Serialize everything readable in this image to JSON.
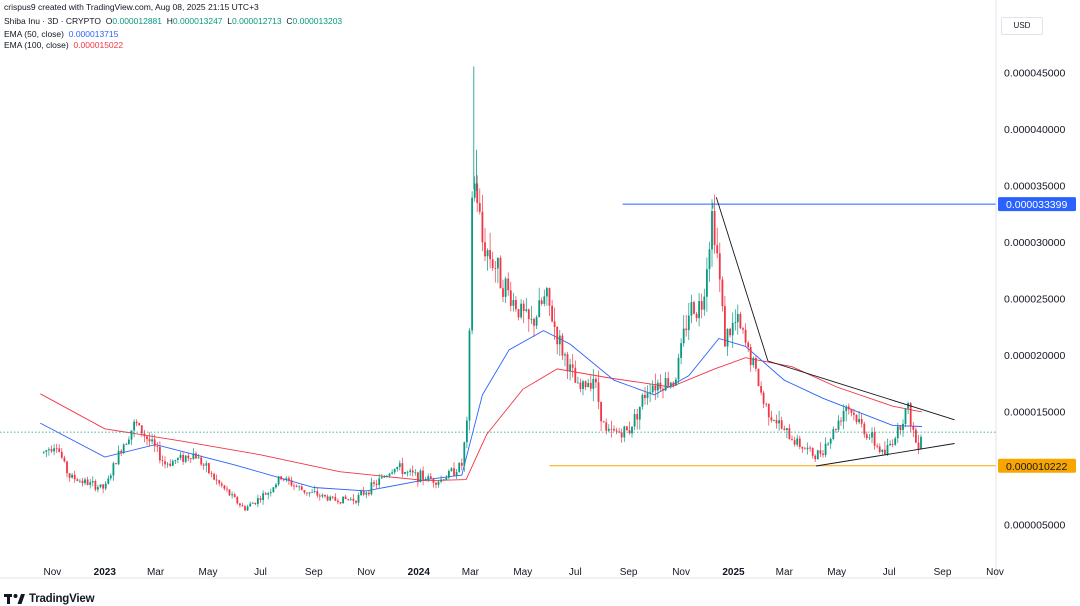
{
  "header": {
    "credit": "crispus9 created with TradingView.com, Aug 08, 2025 21:15 UTC+3",
    "symbol": "Shiba Inu · 3D · CRYPTO",
    "open_label": "O",
    "open": "0.000012881",
    "high_label": "H",
    "high": "0.000013247",
    "low_label": "L",
    "low": "0.000012713",
    "close_label": "C",
    "close": "0.000013203",
    "ema50_label": "EMA (50, close)",
    "ema50_value": "0.000013715",
    "ema100_label": "EMA (100, close)",
    "ema100_value": "0.000015022"
  },
  "currency": "USD",
  "logo_text": "TradingView",
  "colors": {
    "up": "#089981",
    "down": "#f23645",
    "ema50": "#2962ff",
    "ema100": "#f23645",
    "resistance": "#2962ff",
    "support": "#f7a600",
    "trendline": "#131722"
  },
  "chart_data": {
    "type": "candlestick",
    "interval": "3D",
    "x_tick_labels": [
      "Nov",
      "2023",
      "Mar",
      "May",
      "Jul",
      "Sep",
      "Nov",
      "2024",
      "Mar",
      "May",
      "Jul",
      "Sep",
      "Nov",
      "2025",
      "Mar",
      "May",
      "Jul",
      "Sep",
      "Nov"
    ],
    "x_range": [
      "2022-10",
      "2025-11"
    ],
    "y_tick_labels": [
      "0.000045000",
      "0.000040000",
      "0.000035000",
      "0.000030000",
      "0.000025000",
      "0.000020000",
      "0.000015000",
      "0.000005000"
    ],
    "y_range": [
      3.3e-06,
      4.85e-05
    ],
    "price_path": [
      {
        "date": "2022-10-22",
        "price": 1.14e-05
      },
      {
        "date": "2022-11-05",
        "price": 1.23e-05
      },
      {
        "date": "2022-11-20",
        "price": 9.3e-06
      },
      {
        "date": "2022-12-15",
        "price": 8.6e-06
      },
      {
        "date": "2023-01-01",
        "price": 8.2e-06
      },
      {
        "date": "2023-01-20",
        "price": 1.18e-05
      },
      {
        "date": "2023-02-05",
        "price": 1.4e-05
      },
      {
        "date": "2023-02-25",
        "price": 1.21e-05
      },
      {
        "date": "2023-03-12",
        "price": 1.04e-05
      },
      {
        "date": "2023-04-15",
        "price": 1.13e-05
      },
      {
        "date": "2023-05-10",
        "price": 8.9e-06
      },
      {
        "date": "2023-06-12",
        "price": 6.4e-06
      },
      {
        "date": "2023-07-10",
        "price": 7.9e-06
      },
      {
        "date": "2023-07-25",
        "price": 9.2e-06
      },
      {
        "date": "2023-08-20",
        "price": 8e-06
      },
      {
        "date": "2023-09-25",
        "price": 7.2e-06
      },
      {
        "date": "2023-10-20",
        "price": 7.3e-06
      },
      {
        "date": "2023-11-15",
        "price": 8.8e-06
      },
      {
        "date": "2023-12-05",
        "price": 1.02e-05
      },
      {
        "date": "2023-12-20",
        "price": 9.5e-06
      },
      {
        "date": "2024-01-25",
        "price": 8.9e-06
      },
      {
        "date": "2024-02-20",
        "price": 1.03e-05
      },
      {
        "date": "2024-02-28",
        "price": 1.5e-05
      },
      {
        "date": "2024-03-02",
        "price": 3.4e-05
      },
      {
        "date": "2024-03-07",
        "price": 3.52e-05
      },
      {
        "date": "2024-03-15",
        "price": 3e-05
      },
      {
        "date": "2024-03-25",
        "price": 2.87e-05
      },
      {
        "date": "2024-04-15",
        "price": 2.54e-05
      },
      {
        "date": "2024-05-10",
        "price": 2.26e-05
      },
      {
        "date": "2024-05-28",
        "price": 2.52e-05
      },
      {
        "date": "2024-06-12",
        "price": 2.12e-05
      },
      {
        "date": "2024-07-05",
        "price": 1.68e-05
      },
      {
        "date": "2024-07-22",
        "price": 1.82e-05
      },
      {
        "date": "2024-08-05",
        "price": 1.31e-05
      },
      {
        "date": "2024-09-01",
        "price": 1.33e-05
      },
      {
        "date": "2024-09-25",
        "price": 1.74e-05
      },
      {
        "date": "2024-10-25",
        "price": 1.78e-05
      },
      {
        "date": "2024-11-10",
        "price": 2.4e-05
      },
      {
        "date": "2024-11-25",
        "price": 2.45e-05
      },
      {
        "date": "2024-12-08",
        "price": 3.3e-05
      },
      {
        "date": "2024-12-22",
        "price": 2.15e-05
      },
      {
        "date": "2025-01-05",
        "price": 2.3e-05
      },
      {
        "date": "2025-01-25",
        "price": 1.9e-05
      },
      {
        "date": "2025-02-05",
        "price": 1.58e-05
      },
      {
        "date": "2025-03-01",
        "price": 1.32e-05
      },
      {
        "date": "2025-04-07",
        "price": 1.1e-05
      },
      {
        "date": "2025-04-25",
        "price": 1.29e-05
      },
      {
        "date": "2025-05-12",
        "price": 1.57e-05
      },
      {
        "date": "2025-06-01",
        "price": 1.35e-05
      },
      {
        "date": "2025-06-25",
        "price": 1.12e-05
      },
      {
        "date": "2025-07-10",
        "price": 1.32e-05
      },
      {
        "date": "2025-07-22",
        "price": 1.55e-05
      },
      {
        "date": "2025-08-02",
        "price": 1.2e-05
      },
      {
        "date": "2025-08-08",
        "price": 1.32e-05
      }
    ],
    "spikes": [
      {
        "date": "2024-03-05",
        "high": 4.56e-05
      },
      {
        "date": "2024-03-08",
        "high": 3.82e-05
      },
      {
        "date": "2024-12-08",
        "high": 3.35e-05
      }
    ],
    "ema50": [
      {
        "date": "2022-10-18",
        "price": 1.4e-05
      },
      {
        "date": "2023-01-01",
        "price": 1.1e-05
      },
      {
        "date": "2023-03-01",
        "price": 1.21e-05
      },
      {
        "date": "2023-06-01",
        "price": 1.03e-05
      },
      {
        "date": "2023-09-01",
        "price": 8.3e-06
      },
      {
        "date": "2023-11-01",
        "price": 8e-06
      },
      {
        "date": "2024-01-10",
        "price": 9e-06
      },
      {
        "date": "2024-02-20",
        "price": 9.4e-06
      },
      {
        "date": "2024-03-15",
        "price": 1.65e-05
      },
      {
        "date": "2024-04-15",
        "price": 2.05e-05
      },
      {
        "date": "2024-05-25",
        "price": 2.22e-05
      },
      {
        "date": "2024-06-25",
        "price": 2.1e-05
      },
      {
        "date": "2024-08-15",
        "price": 1.78e-05
      },
      {
        "date": "2024-10-01",
        "price": 1.65e-05
      },
      {
        "date": "2024-11-10",
        "price": 1.82e-05
      },
      {
        "date": "2024-12-15",
        "price": 2.15e-05
      },
      {
        "date": "2025-01-15",
        "price": 2.08e-05
      },
      {
        "date": "2025-03-01",
        "price": 1.78e-05
      },
      {
        "date": "2025-04-15",
        "price": 1.62e-05
      },
      {
        "date": "2025-06-01",
        "price": 1.48e-05
      },
      {
        "date": "2025-07-05",
        "price": 1.38e-05
      },
      {
        "date": "2025-08-08",
        "price": 1.37e-05
      }
    ],
    "ema100": [
      {
        "date": "2022-10-18",
        "price": 1.66e-05
      },
      {
        "date": "2023-01-01",
        "price": 1.35e-05
      },
      {
        "date": "2023-04-01",
        "price": 1.24e-05
      },
      {
        "date": "2023-07-01",
        "price": 1.12e-05
      },
      {
        "date": "2023-10-01",
        "price": 9.7e-06
      },
      {
        "date": "2024-01-10",
        "price": 8.9e-06
      },
      {
        "date": "2024-02-25",
        "price": 9e-06
      },
      {
        "date": "2024-03-20",
        "price": 1.3e-05
      },
      {
        "date": "2024-05-01",
        "price": 1.7e-05
      },
      {
        "date": "2024-06-10",
        "price": 1.88e-05
      },
      {
        "date": "2024-08-10",
        "price": 1.8e-05
      },
      {
        "date": "2024-10-20",
        "price": 1.72e-05
      },
      {
        "date": "2024-12-10",
        "price": 1.88e-05
      },
      {
        "date": "2025-01-15",
        "price": 1.98e-05
      },
      {
        "date": "2025-03-10",
        "price": 1.9e-05
      },
      {
        "date": "2025-05-01",
        "price": 1.72e-05
      },
      {
        "date": "2025-07-05",
        "price": 1.55e-05
      },
      {
        "date": "2025-08-08",
        "price": 1.5e-05
      }
    ],
    "annotations": {
      "resistance": {
        "price": 3.3399e-05,
        "label": "0.000033399",
        "from_date": "2024-08-25"
      },
      "support": {
        "price": 1.0222e-05,
        "label": "0.000010222",
        "from_date": "2024-06-01"
      },
      "current_price": 1.3203e-05,
      "trendlines": [
        {
          "from": {
            "date": "2024-12-12",
            "price": 3.4e-05
          },
          "to": {
            "date": "2025-02-10",
            "price": 1.95e-05
          }
        },
        {
          "from": {
            "date": "2025-02-10",
            "price": 1.95e-05
          },
          "to": {
            "date": "2025-09-15",
            "price": 1.43e-05
          }
        },
        {
          "from": {
            "date": "2025-04-07",
            "price": 1.02e-05
          },
          "to": {
            "date": "2025-09-15",
            "price": 1.22e-05
          }
        }
      ]
    },
    "grid": false,
    "legend_position": "top-left"
  }
}
